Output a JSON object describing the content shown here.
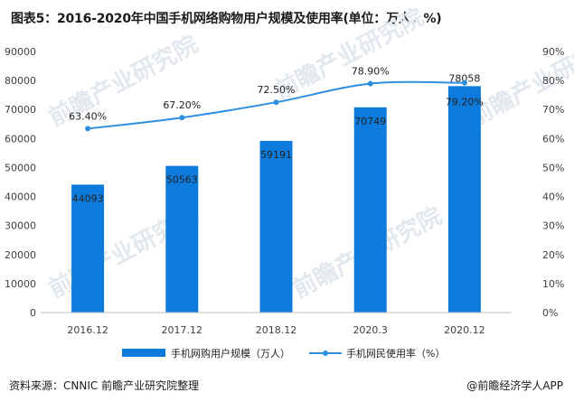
{
  "title": "图表5：2016-2020年中国手机网络购物用户规模及使用率(单位：万人，%)",
  "source": "资料来源：CNNIC 前瞻产业研究院整理",
  "brand": "@前瞻经济学人APP",
  "watermark": "前瞻产业研究院",
  "colors": {
    "bar": "#0d7bdc",
    "line": "#2e8fe0"
  },
  "chart_data": {
    "type": "bar",
    "categories": [
      "2016.12",
      "2017.12",
      "2018.12",
      "2020.3",
      "2020.12"
    ],
    "ylim": [
      0,
      90000
    ],
    "y_ticks": [
      "0",
      "10000",
      "20000",
      "30000",
      "40000",
      "50000",
      "60000",
      "70000",
      "80000",
      "90000"
    ],
    "y2lim": [
      0,
      90
    ],
    "y2_ticks": [
      "0%",
      "10%",
      "20%",
      "30%",
      "40%",
      "50%",
      "60%",
      "70%",
      "80%",
      "90%"
    ],
    "legend_position": "bottom",
    "series": [
      {
        "name": "手机网购用户规模（万人）",
        "type": "bar",
        "axis": "left",
        "values": [
          44093,
          50563,
          59191,
          70749,
          78058
        ],
        "labels": [
          "44093",
          "50563",
          "59191",
          "70749",
          "78058"
        ]
      },
      {
        "name": "手机网民使用率（%）",
        "type": "line",
        "axis": "right",
        "values": [
          63.4,
          67.2,
          72.5,
          78.9,
          79.2
        ],
        "labels": [
          "63.40%",
          "67.20%",
          "72.50%",
          "78.90%",
          "79.20%"
        ]
      }
    ]
  }
}
